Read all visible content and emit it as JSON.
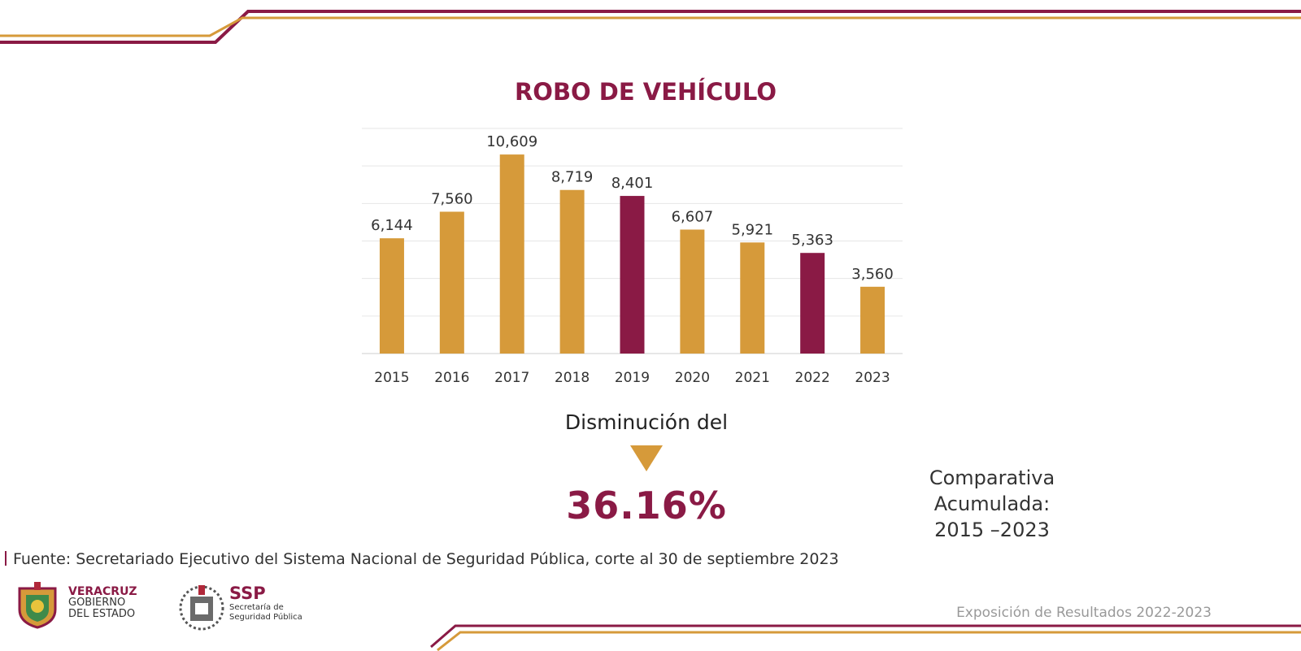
{
  "chart_data": {
    "type": "bar",
    "title": "ROBO DE VEHÍCULO",
    "categories": [
      "2015",
      "2016",
      "2017",
      "2018",
      "2019",
      "2020",
      "2021",
      "2022",
      "2023"
    ],
    "values": [
      6144,
      7560,
      10609,
      8719,
      8401,
      6607,
      5921,
      5363,
      3560
    ],
    "value_labels": [
      "6,144",
      "7,560",
      "10,609",
      "8,719",
      "8,401",
      "6,607",
      "5,921",
      "5,363",
      "3,560"
    ],
    "bar_colors": [
      "#d69a3a",
      "#d69a3a",
      "#d69a3a",
      "#d69a3a",
      "#8a1a45",
      "#d69a3a",
      "#d69a3a",
      "#8a1a45",
      "#d69a3a"
    ],
    "xlabel": "",
    "ylabel": "",
    "ylim": [
      0,
      12000
    ],
    "grid": true,
    "legend": "none"
  },
  "summary": {
    "label": "Disminución del",
    "percent": "36.16%",
    "comparison_lines": [
      "Comparativa",
      "Acumulada:",
      "2015 –2023"
    ]
  },
  "source": "Fuente: Secretariado Ejecutivo del Sistema Nacional de Seguridad Pública, corte al 30 de septiembre 2023",
  "logos": {
    "veracruz": {
      "line1": "VERACRUZ",
      "line2": "GOBIERNO",
      "line3": "DEL ESTADO"
    },
    "ssp": {
      "acronym": "SSP",
      "line1": "Secretaría de",
      "line2": "Seguridad Pública"
    }
  },
  "footer_title": "Exposición de Resultados 2022-2023",
  "colors": {
    "accent": "#8a1a45",
    "gold": "#d69a3a"
  }
}
